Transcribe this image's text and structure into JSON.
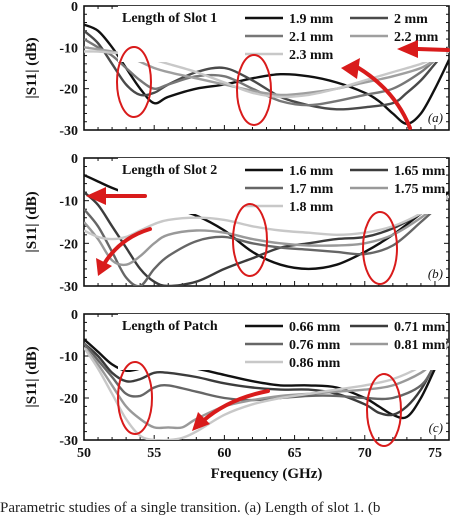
{
  "caption": "Parametric studies of a single transition. (a) Length of slot 1. (b",
  "chart_data": [
    {
      "type": "line",
      "panel_label": "(a)",
      "legend_title": "Length of Slot 1",
      "xlabel": "",
      "ylabel": "|S11| (dB)",
      "xlim": [
        50,
        76
      ],
      "ylim": [
        -30,
        0
      ],
      "xticks": [],
      "yticks": [
        0,
        -10,
        -20,
        -30
      ],
      "grid": false,
      "legend_position": "top",
      "series": [
        {
          "name": "1.9 mm",
          "color": "#111111",
          "x": [
            50,
            51,
            52,
            53,
            54,
            55,
            56,
            58,
            60,
            62,
            64,
            66,
            68,
            70,
            71,
            72,
            73,
            74,
            75,
            76
          ],
          "y": [
            -4.5,
            -6,
            -10,
            -15,
            -20,
            -23.5,
            -22,
            -20,
            -19,
            -17.5,
            -16.5,
            -17,
            -18.5,
            -21,
            -23,
            -26,
            -28.5,
            -26,
            -20,
            -13
          ]
        },
        {
          "name": "2 mm",
          "color": "#4a4a4a",
          "x": [
            50,
            51,
            52,
            53,
            54,
            55,
            56,
            58,
            60,
            62,
            64,
            66,
            68,
            70,
            72,
            73,
            74,
            75,
            76
          ],
          "y": [
            -6,
            -9,
            -14,
            -19,
            -21.5,
            -21,
            -19,
            -16,
            -15,
            -18,
            -22,
            -24,
            -25,
            -24.5,
            -23.5,
            -21,
            -18,
            -14,
            -10
          ]
        },
        {
          "name": "2.1 mm",
          "color": "#777777",
          "x": [
            50,
            51,
            52,
            53,
            54,
            55,
            56,
            58,
            60,
            62,
            64,
            66,
            68,
            70,
            72,
            74,
            75,
            76
          ],
          "y": [
            -8,
            -10,
            -12,
            -15,
            -18,
            -20,
            -19,
            -17,
            -17,
            -20,
            -23,
            -24,
            -23,
            -21.5,
            -20,
            -16,
            -13,
            -10
          ]
        },
        {
          "name": "2.2 mm",
          "color": "#9f9f9f",
          "x": [
            50,
            51,
            52,
            53,
            54,
            55,
            56,
            58,
            60,
            62,
            64,
            66,
            68,
            70,
            72,
            74,
            75,
            76
          ],
          "y": [
            -10,
            -10.5,
            -11,
            -12,
            -13.5,
            -15,
            -16,
            -17.5,
            -19,
            -20.5,
            -21.5,
            -21,
            -20,
            -18.5,
            -17,
            -15,
            -13,
            -11
          ]
        },
        {
          "name": "2.3 mm",
          "color": "#c8c8c8",
          "x": [
            50,
            51,
            52,
            53,
            54,
            55,
            56,
            58,
            60,
            62,
            64,
            66,
            68,
            70,
            72,
            74,
            75,
            76
          ],
          "y": [
            -11,
            -11,
            -11.3,
            -11.5,
            -12,
            -13,
            -14,
            -16,
            -18.5,
            -21,
            -22,
            -21.5,
            -20,
            -18,
            -16,
            -14,
            -12.5,
            -11
          ]
        }
      ]
    },
    {
      "type": "line",
      "panel_label": "(b)",
      "legend_title": "Length of Slot 2",
      "xlabel": "",
      "ylabel": "|S11| (dB)",
      "xlim": [
        50,
        76
      ],
      "ylim": [
        -30,
        0
      ],
      "xticks": [],
      "yticks": [
        0,
        -10,
        -20,
        -30
      ],
      "grid": false,
      "legend_position": "top",
      "series": [
        {
          "name": "1.6 mm",
          "color": "#111111",
          "x": [
            50,
            51,
            52,
            54,
            56,
            58,
            60,
            62,
            64,
            66,
            68,
            70,
            72,
            74,
            76
          ],
          "y": [
            -4,
            -5.5,
            -7,
            -9.5,
            -11.5,
            -13.5,
            -17,
            -22,
            -25,
            -26,
            -25,
            -22,
            -18,
            -13,
            -8
          ]
        },
        {
          "name": "1.65 mm",
          "color": "#3c3c3c",
          "x": [
            50,
            51,
            52,
            53,
            54,
            55,
            56,
            58,
            60,
            62,
            64,
            66,
            68,
            70,
            72,
            74,
            76
          ],
          "y": [
            -8,
            -11,
            -16,
            -21,
            -26,
            -29,
            -30,
            -29,
            -26,
            -23.5,
            -21,
            -20,
            -19,
            -18.5,
            -16.5,
            -13,
            -9
          ]
        },
        {
          "name": "1.7 mm",
          "color": "#666666",
          "x": [
            50,
            51,
            52,
            53,
            54,
            55,
            56,
            58,
            60,
            62,
            64,
            66,
            68,
            70,
            72,
            74,
            76
          ],
          "y": [
            -12,
            -16,
            -22,
            -28,
            -30,
            -26,
            -23,
            -19.5,
            -18.5,
            -20,
            -21,
            -21.5,
            -22,
            -22.5,
            -20.5,
            -15,
            -9
          ]
        },
        {
          "name": "1.75 mm",
          "color": "#999999",
          "x": [
            50,
            51,
            52,
            53,
            54,
            55,
            56,
            58,
            60,
            62,
            64,
            66,
            68,
            70,
            72,
            74,
            76
          ],
          "y": [
            -15,
            -19,
            -24,
            -25,
            -23,
            -20,
            -18,
            -17,
            -17.5,
            -19,
            -20,
            -20.5,
            -20.5,
            -20,
            -18,
            -14,
            -9
          ]
        },
        {
          "name": "1.8 mm",
          "color": "#c8c8c8",
          "x": [
            50,
            51,
            52,
            53,
            54,
            55,
            56,
            58,
            60,
            62,
            64,
            66,
            68,
            70,
            72,
            74,
            76
          ],
          "y": [
            -17,
            -18.5,
            -19,
            -18.5,
            -17,
            -15.5,
            -14.5,
            -14,
            -14.5,
            -16,
            -17,
            -17.5,
            -18,
            -17.5,
            -16,
            -13,
            -9
          ]
        }
      ]
    },
    {
      "type": "line",
      "panel_label": "(c)",
      "legend_title": "Length of Patch",
      "xlabel": "Frequency (GHz)",
      "ylabel": "|S11| (dB)",
      "xlim": [
        50,
        76
      ],
      "ylim": [
        -30,
        0
      ],
      "xticks": [
        50,
        55,
        60,
        65,
        70,
        75
      ],
      "yticks": [
        0,
        -10,
        -20,
        -30
      ],
      "grid": false,
      "legend_position": "top",
      "series": [
        {
          "name": "0.66 mm",
          "color": "#111111",
          "x": [
            50,
            51,
            52,
            53,
            54,
            55,
            56,
            58,
            60,
            62,
            64,
            66,
            68,
            70,
            71,
            72,
            73,
            74,
            75,
            76
          ],
          "y": [
            -6,
            -9,
            -12,
            -13.5,
            -13,
            -12,
            -12,
            -13,
            -14.5,
            -16,
            -17,
            -17,
            -17.5,
            -20,
            -22,
            -24,
            -24.5,
            -20,
            -13,
            -6
          ]
        },
        {
          "name": "0.71 mm",
          "color": "#3c3c3c",
          "x": [
            50,
            51,
            52,
            53,
            54,
            55,
            56,
            58,
            60,
            62,
            64,
            66,
            68,
            70,
            71,
            72,
            73,
            74,
            75,
            76
          ],
          "y": [
            -7,
            -10,
            -14,
            -16,
            -15.5,
            -14,
            -14,
            -15,
            -16.5,
            -17.5,
            -18,
            -18,
            -19,
            -21.5,
            -23.5,
            -24,
            -22,
            -18,
            -12,
            -6
          ]
        },
        {
          "name": "0.76 mm",
          "color": "#666666",
          "x": [
            50,
            51,
            52,
            53,
            54,
            55,
            56,
            58,
            60,
            62,
            64,
            66,
            68,
            70,
            72,
            74,
            75,
            76
          ],
          "y": [
            -7,
            -11,
            -15,
            -19,
            -19.5,
            -17.5,
            -17,
            -18.5,
            -20,
            -20.5,
            -20,
            -19.5,
            -19.5,
            -20,
            -20,
            -17,
            -12,
            -7
          ]
        },
        {
          "name": "0.81 mm",
          "color": "#999999",
          "x": [
            50,
            51,
            52,
            53,
            54,
            55,
            56,
            57,
            58,
            60,
            62,
            64,
            66,
            68,
            70,
            72,
            74,
            75,
            76
          ],
          "y": [
            -8,
            -12,
            -17,
            -22,
            -25,
            -27,
            -27,
            -27,
            -25,
            -22,
            -20.5,
            -19.5,
            -19,
            -18.5,
            -18,
            -17,
            -14,
            -11,
            -7
          ]
        },
        {
          "name": "0.86 mm",
          "color": "#c8c8c8",
          "x": [
            50,
            51,
            52,
            53,
            54,
            55,
            56,
            57,
            58,
            60,
            62,
            64,
            66,
            68,
            70,
            72,
            74,
            75,
            76
          ],
          "y": [
            -8,
            -13,
            -19,
            -25,
            -29,
            -30,
            -30,
            -29.5,
            -28,
            -24,
            -21.5,
            -20,
            -19,
            -18,
            -17,
            -15.5,
            -12.5,
            -10,
            -7
          ]
        }
      ]
    }
  ]
}
